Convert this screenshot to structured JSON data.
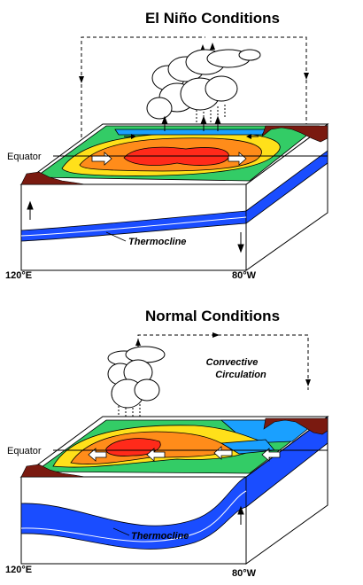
{
  "panels": {
    "elnino": {
      "title": "El Niño Conditions",
      "equator": "Equator",
      "thermocline": "Thermocline",
      "lon_west": "120°E",
      "lon_east": "80°W"
    },
    "normal": {
      "title": "Normal Conditions",
      "equator": "Equator",
      "thermocline": "Thermocline",
      "lon_west": "120°E",
      "lon_east": "80°W",
      "circulation_line1": "Convective",
      "circulation_line2": "Circulation"
    }
  },
  "colors": {
    "warm_core": "#ff2a1a",
    "warm": "#ff8c1a",
    "mild": "#ffe01a",
    "cool": "#33cc66",
    "cold": "#1aa0ff",
    "thermocline_water": "#1a4dff",
    "land": "#7a1a10"
  }
}
